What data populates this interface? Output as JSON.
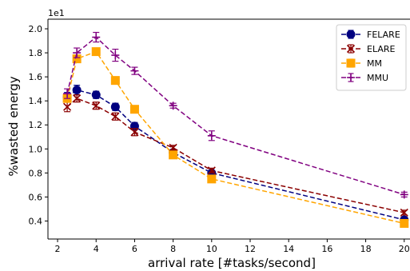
{
  "chart_data": {
    "type": "line",
    "title": "",
    "xlabel": "arrival rate [#tasks/second]",
    "ylabel": "%wasted energy",
    "y_offset_label": "1e1",
    "xlim": [
      1.5,
      20.3
    ],
    "ylim": [
      0.25,
      2.08
    ],
    "xticks": [
      2,
      4,
      6,
      8,
      10,
      12,
      14,
      16,
      18,
      20
    ],
    "yticks": [
      0.4,
      0.6,
      0.8,
      1.0,
      1.2,
      1.4,
      1.6,
      1.8,
      2.0
    ],
    "ytick_labels": [
      "0.4",
      "0.6",
      "0.8",
      "1.0",
      "1.2",
      "1.4",
      "1.6",
      "1.8",
      "2.0"
    ],
    "x": [
      2.5,
      3,
      4,
      5,
      6,
      8,
      10,
      20
    ],
    "legend_position": "top-right",
    "grid": false,
    "series": [
      {
        "name": "FELARE",
        "color": "#000080",
        "marker": "circle",
        "values": [
          1.43,
          1.49,
          1.45,
          1.35,
          1.19,
          0.97,
          0.8,
          0.41
        ],
        "errors": [
          0.04,
          0.04,
          0.03,
          0.03,
          0.03,
          0.02,
          0.02,
          0.02
        ]
      },
      {
        "name": "ELARE",
        "color": "#8b0000",
        "marker": "x",
        "values": [
          1.35,
          1.42,
          1.36,
          1.27,
          1.14,
          1.01,
          0.82,
          0.47
        ],
        "errors": [
          0.04,
          0.03,
          0.03,
          0.03,
          0.03,
          0.02,
          0.02,
          0.02
        ]
      },
      {
        "name": "MM",
        "color": "#ffa500",
        "marker": "square",
        "values": [
          1.42,
          1.75,
          1.81,
          1.57,
          1.33,
          0.95,
          0.75,
          0.38
        ],
        "errors": [
          0.02,
          0.02,
          0.02,
          0.02,
          0.02,
          0.02,
          0.02,
          0.02
        ]
      },
      {
        "name": "MMU",
        "color": "#800080",
        "marker": "plus",
        "values": [
          1.46,
          1.8,
          1.93,
          1.78,
          1.65,
          1.36,
          1.11,
          0.62
        ],
        "errors": [
          0.04,
          0.04,
          0.04,
          0.05,
          0.03,
          0.02,
          0.04,
          0.02
        ]
      }
    ]
  }
}
